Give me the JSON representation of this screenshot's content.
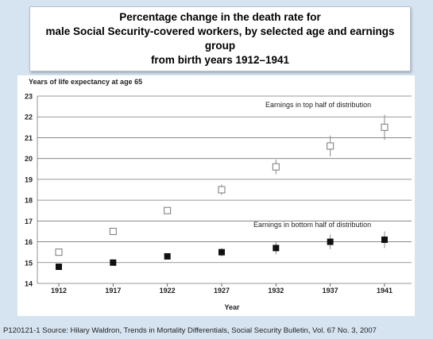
{
  "title": {
    "line1": "Percentage change in the death rate for",
    "line2": "male Social Security-covered workers, by selected age and earnings group",
    "line3": "from birth years 1912–1941"
  },
  "source": "P120121-1 Source:  Hilary Waldron, Trends in Mortality Differentials, Social Security Bulletin, Vol. 67 No. 3, 2007",
  "chart_data": {
    "type": "scatter",
    "ylabel": "Years of life expectancy at age 65",
    "xlabel": "Year",
    "categories": [
      "1912",
      "1917",
      "1922",
      "1927",
      "1932",
      "1937",
      "1941"
    ],
    "ylim": [
      14,
      23
    ],
    "yticks": [
      14,
      15,
      16,
      17,
      18,
      19,
      20,
      21,
      22,
      23
    ],
    "grid": true,
    "series": [
      {
        "name": "Earnings in top half of distribution",
        "marker": "open-square",
        "values": [
          15.5,
          16.5,
          17.5,
          18.5,
          19.6,
          20.6,
          21.5
        ],
        "error_bars": [
          null,
          null,
          null,
          0.25,
          0.35,
          0.5,
          0.6
        ]
      },
      {
        "name": "Earnings in bottom half of distribution",
        "marker": "filled-square",
        "values": [
          14.8,
          15.0,
          15.3,
          15.5,
          15.7,
          16.0,
          16.1
        ],
        "error_bars": [
          null,
          null,
          null,
          0.2,
          0.3,
          0.35,
          0.4
        ]
      }
    ]
  }
}
